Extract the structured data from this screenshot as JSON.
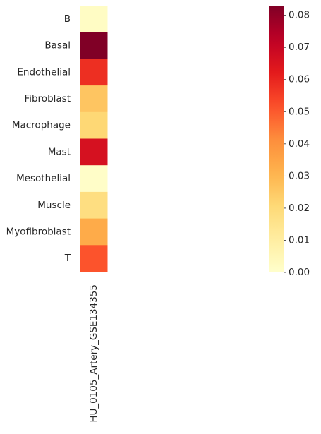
{
  "chart_data": {
    "type": "heatmap",
    "rows": [
      "B",
      "Basal",
      "Endothelial",
      "Fibroblast",
      "Macrophage",
      "Mast",
      "Mesothelial",
      "Muscle",
      "Myofibroblast",
      "T"
    ],
    "columns": [
      "HU_0105_Artery_GSE134355"
    ],
    "values": [
      [
        0.002
      ],
      [
        0.083
      ],
      [
        0.058
      ],
      [
        0.026
      ],
      [
        0.021
      ],
      [
        0.066
      ],
      [
        0.001
      ],
      [
        0.018
      ],
      [
        0.033
      ],
      [
        0.051
      ]
    ],
    "colormap": "YlOrRd",
    "colorbar": {
      "min": 0.0,
      "max": 0.083,
      "ticks": [
        0.0,
        0.01,
        0.02,
        0.03,
        0.04,
        0.05,
        0.06,
        0.07,
        0.08
      ],
      "tick_labels": [
        "0.00",
        "0.01",
        "0.02",
        "0.03",
        "0.04",
        "0.05",
        "0.06",
        "0.07",
        "0.08"
      ]
    },
    "title": "",
    "xlabel": "",
    "ylabel": ""
  }
}
